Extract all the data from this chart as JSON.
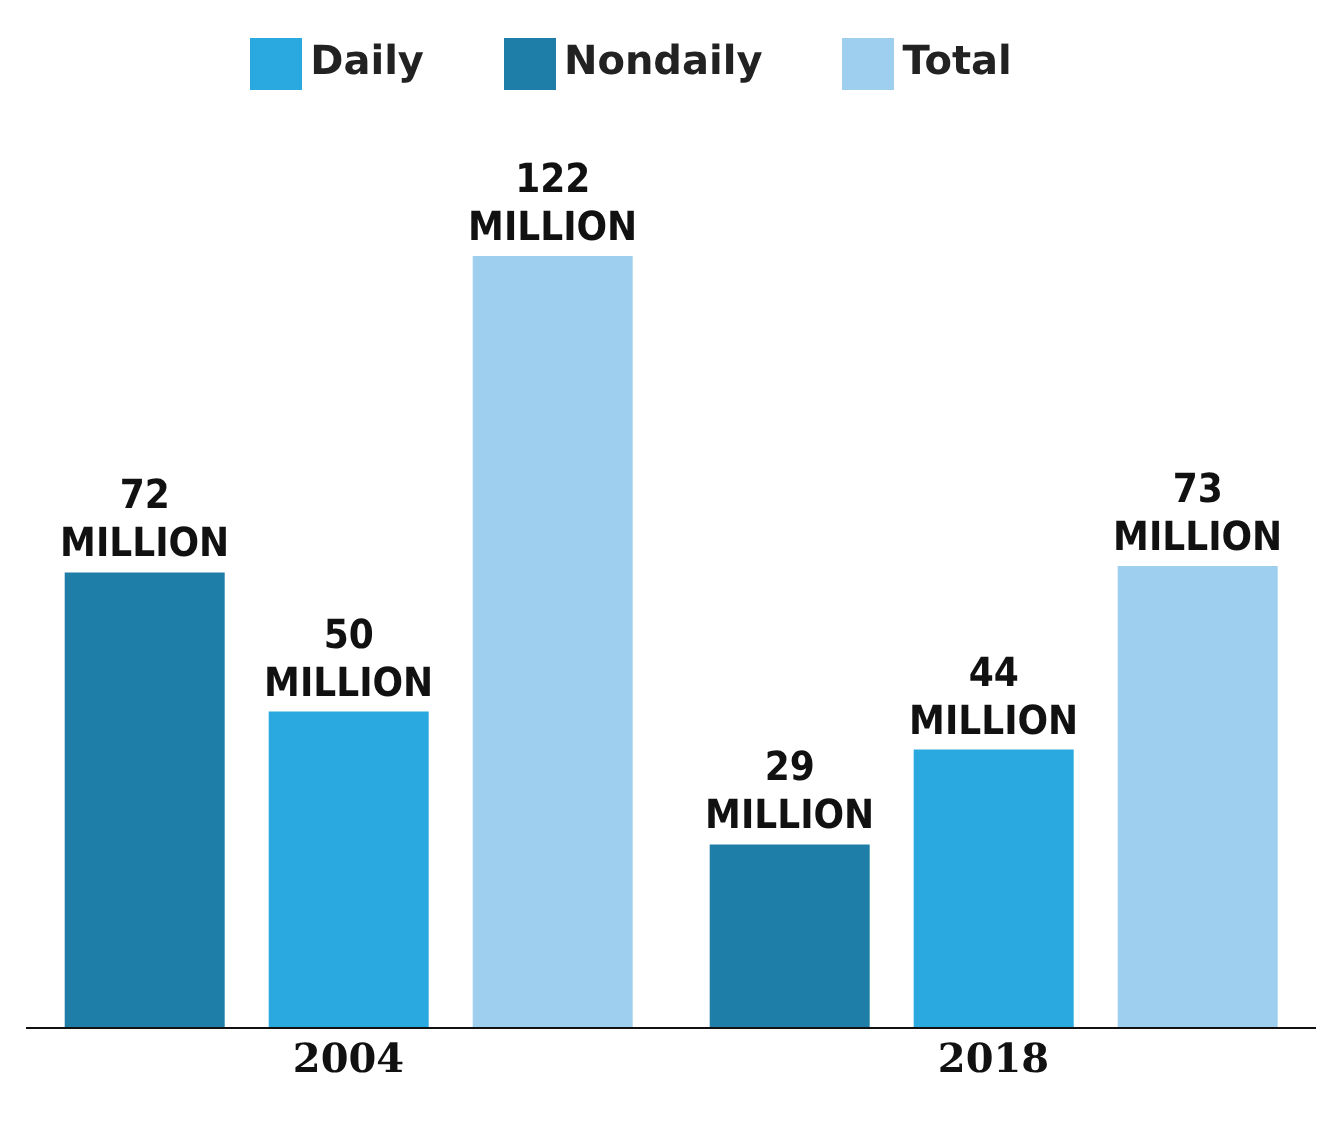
{
  "chart_data": {
    "type": "bar",
    "categories": [
      "2004",
      "2018"
    ],
    "series": [
      {
        "name": "Nondaily",
        "color": "#1f7ea8",
        "values": [
          72,
          29
        ],
        "value_labels": [
          "72 MILLION",
          "29 MILLION"
        ]
      },
      {
        "name": "Daily",
        "color": "#29a9e0",
        "values": [
          50,
          44
        ],
        "value_labels": [
          "50 MILLION",
          "44 MILLION"
        ]
      },
      {
        "name": "Total",
        "color": "#9fcfee",
        "values": [
          122,
          73
        ],
        "value_labels": [
          "122 MILLION",
          "73 MILLION"
        ]
      }
    ],
    "legend": "top",
    "grid": false
  }
}
